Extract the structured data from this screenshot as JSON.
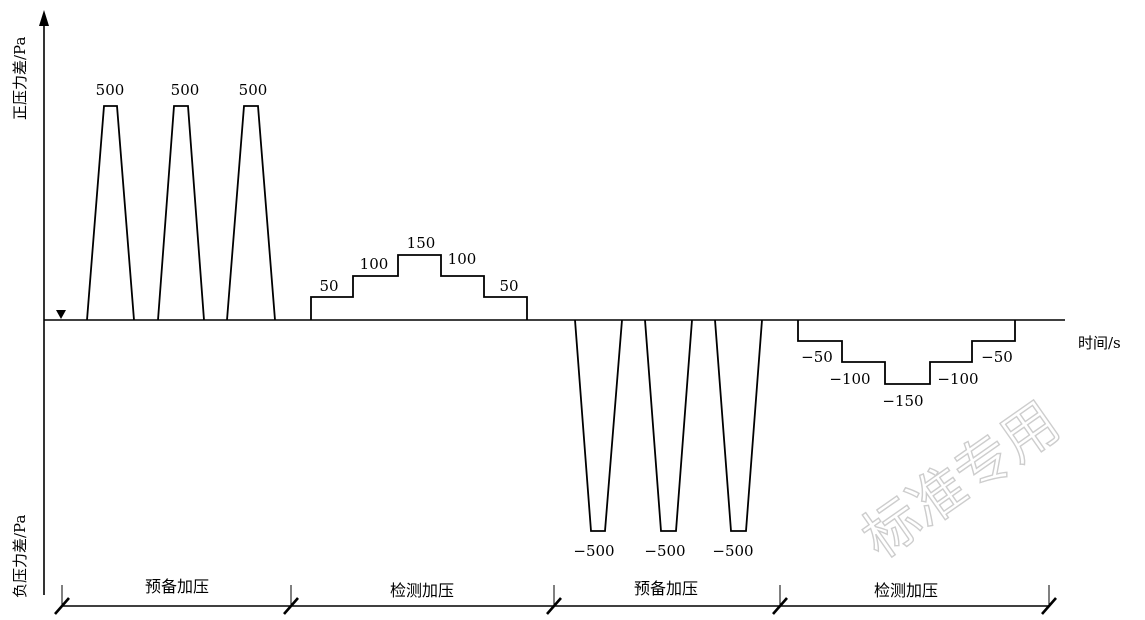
{
  "axes": {
    "y_positive_label": "正压力差/Pa",
    "y_negative_label": "负压力差/Pa",
    "x_label": "时间/s"
  },
  "pulses_positive": [
    "500",
    "500",
    "500"
  ],
  "steps_positive": [
    "50",
    "100",
    "150",
    "100",
    "50"
  ],
  "pulses_negative": [
    "−500",
    "−500",
    "−500"
  ],
  "steps_negative": [
    "−50",
    "−100",
    "−150",
    "−100",
    "−50"
  ],
  "phases": [
    "预备加压",
    "检测加压",
    "预备加压",
    "检测加压"
  ],
  "watermark": "标准专用"
}
